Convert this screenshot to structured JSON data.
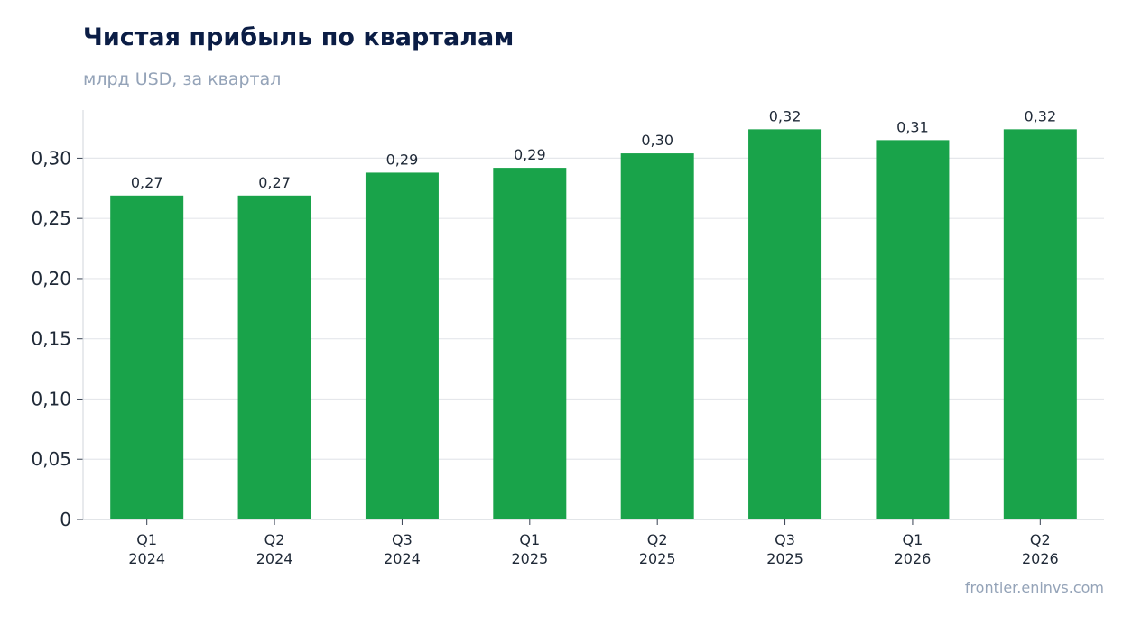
{
  "header": {
    "title": "Чистая прибыль по кварталам",
    "subtitle": "млрд USD, за квартал"
  },
  "footer": {
    "source": "frontier.eninvs.com"
  },
  "colors": {
    "bar": "#19a34a",
    "grid": "#e5e7eb",
    "axis": "#d1d5db"
  },
  "chart_data": {
    "type": "bar",
    "title": "Чистая прибыль по кварталам",
    "subtitle": "млрд USD, за квартал",
    "xlabel": "",
    "ylabel": "",
    "ylim": [
      0,
      0.34
    ],
    "yticks": [
      0,
      0.05,
      0.1,
      0.15,
      0.2,
      0.25,
      0.3
    ],
    "ytick_labels": [
      "0",
      "0,05",
      "0,10",
      "0,15",
      "0,20",
      "0,25",
      "0,30"
    ],
    "grid": true,
    "legend": "none",
    "categories": [
      [
        "Q1",
        "2024"
      ],
      [
        "Q2",
        "2024"
      ],
      [
        "Q3",
        "2024"
      ],
      [
        "Q1",
        "2025"
      ],
      [
        "Q2",
        "2025"
      ],
      [
        "Q3",
        "2025"
      ],
      [
        "Q1",
        "2026"
      ],
      [
        "Q2",
        "2026"
      ]
    ],
    "values": [
      0.269,
      0.269,
      0.288,
      0.292,
      0.304,
      0.324,
      0.315,
      0.324
    ],
    "data_labels": [
      "0,27",
      "0,27",
      "0,29",
      "0,29",
      "0,30",
      "0,32",
      "0,31",
      "0,32"
    ]
  }
}
